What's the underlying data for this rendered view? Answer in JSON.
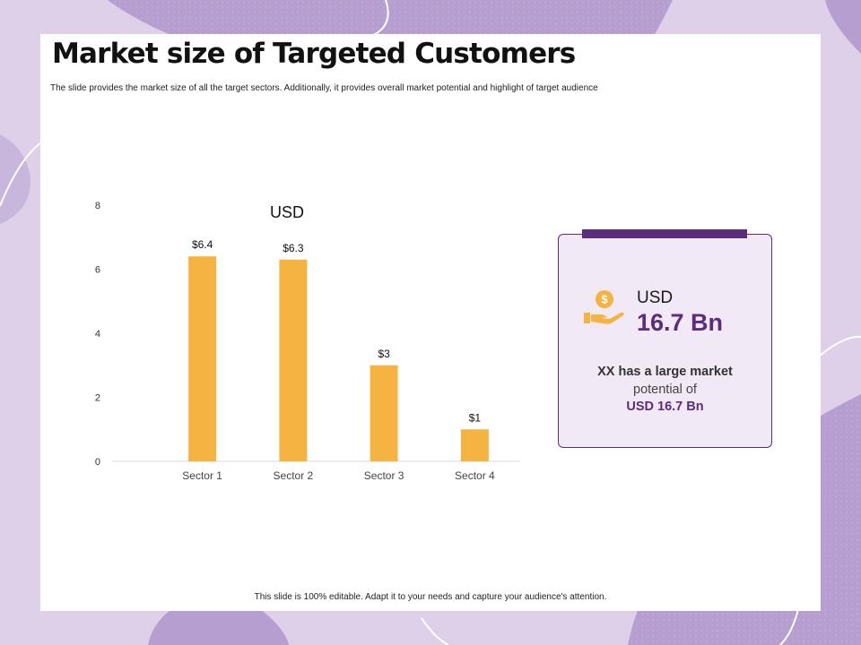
{
  "slide": {
    "title": "Market size of Targeted Customers",
    "subtitle": "The slide provides the market  size of all  the target sectors. Additionally, it provides overall market  potential  and highlight  of target audience",
    "footer": "This slide is 100% editable.  Adapt it to your needs and capture your audience's attention."
  },
  "colors": {
    "background": "#ddd0e8",
    "accent": "#5b2d7a",
    "bar": "#f5b342",
    "card_fill": "#f1e9f6"
  },
  "chart_data": {
    "type": "bar",
    "title": "USD",
    "categories": [
      "Sector 1",
      "Sector 2",
      "Sector 3",
      "Sector 4"
    ],
    "values": [
      6.4,
      6.3,
      3,
      1
    ],
    "data_labels": [
      "$6.4",
      "$6.3",
      "$3",
      "$1"
    ],
    "yticks": [
      0,
      2,
      4,
      6,
      8
    ],
    "ylim": [
      0,
      8
    ],
    "xlabel": "",
    "ylabel": "",
    "grid": false,
    "legend": "none"
  },
  "summary_card": {
    "icon": "money-hand-icon",
    "icon_symbol": "$",
    "currency": "USD",
    "amount": "16.7 Bn",
    "line1": "XX has a large market",
    "line2": "potential of",
    "line3": "USD 16.7 Bn"
  }
}
